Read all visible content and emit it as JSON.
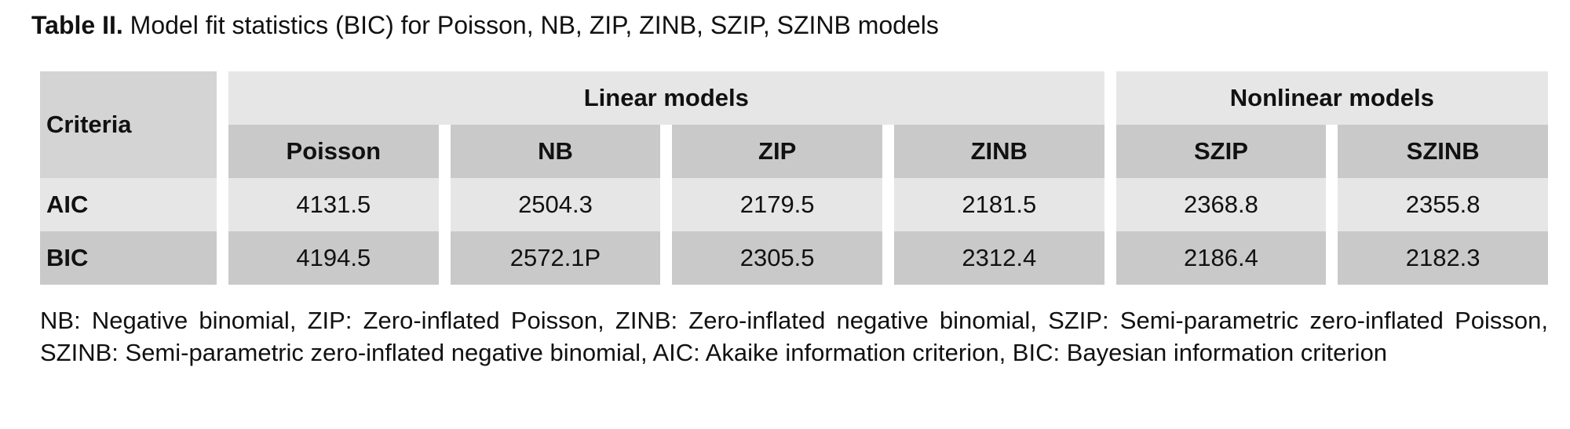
{
  "title": {
    "label": "Table II.",
    "text": "Model fit statistics (BIC) for Poisson, NB, ZIP, ZINB, SZIP, SZINB models"
  },
  "table": {
    "corner": "Criteria",
    "groups": [
      "Linear models",
      "Nonlinear models"
    ],
    "columns": [
      "Poisson",
      "NB",
      "ZIP",
      "ZINB",
      "SZIP",
      "SZINB"
    ],
    "rows": [
      [
        "AIC",
        4131.5,
        2504.3,
        2179.5,
        2181.5,
        2368.8,
        2355.8
      ],
      [
        "BIC",
        4194.5,
        "2572.1P",
        2305.5,
        2312.4,
        2186.4,
        2182.3
      ]
    ]
  },
  "footnote": "NB: Negative binomial, ZIP: Zero-inflated Poisson, ZINB: Zero-inflated negative binomial, SZIP: Semi-parametric zero-inflated Poisson, SZINB: Semi-parametric zero-inflated negative binomial, AIC: Akaike information criterion, BIC: Bayesian information criterion"
}
